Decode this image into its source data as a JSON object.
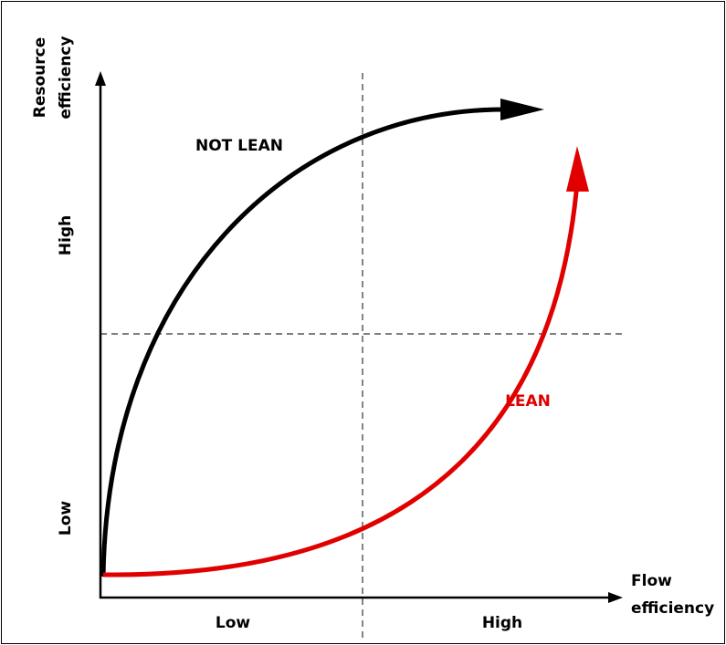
{
  "y_axis": {
    "title": [
      "Resource",
      "efficiency"
    ],
    "low": "Low",
    "high": "High"
  },
  "x_axis": {
    "title": [
      "Flow",
      "efficiency"
    ],
    "low": "Low",
    "high": "High"
  },
  "curves": [
    {
      "label": "NOT LEAN"
    },
    {
      "label": "LEAN"
    }
  ]
}
